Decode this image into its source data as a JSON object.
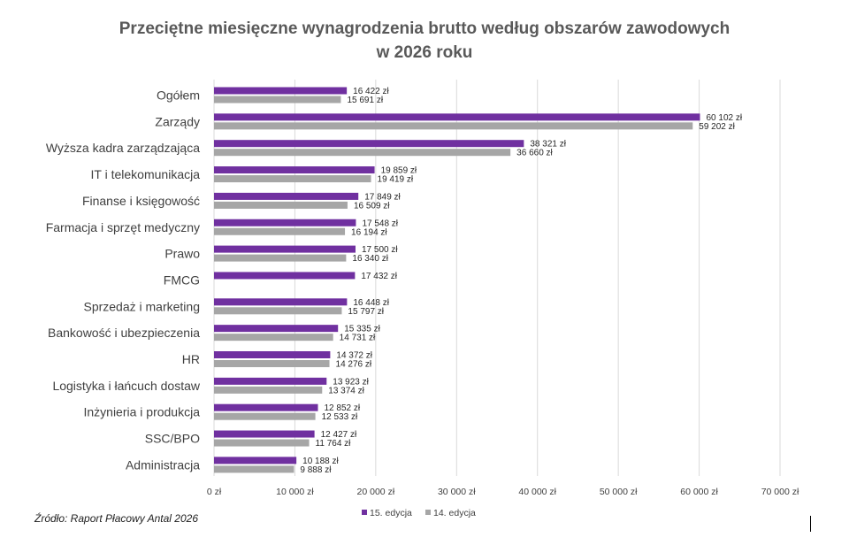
{
  "chart_data": {
    "type": "bar",
    "orientation": "horizontal",
    "title_lines": [
      "Przeciętne miesięczne wynagrodzenia brutto według obszarów zawodowych",
      "w 2026 roku"
    ],
    "categories": [
      "Ogółem",
      "Zarządy",
      "Wyższa kadra zarządzająca",
      "IT i telekomunikacja",
      "Finanse i księgowość",
      "Farmacja i sprzęt medyczny",
      "Prawo",
      "FMCG",
      "Sprzedaż i marketing",
      "Bankowość i ubezpieczenia",
      "HR",
      "Logistyka i łańcuch dostaw",
      "Inżynieria i produkcja",
      "SSC/BPO",
      "Administracja"
    ],
    "series": [
      {
        "name": "15. edycja",
        "color": "#7030a0",
        "values": [
          16422,
          60102,
          38321,
          19859,
          17849,
          17548,
          17500,
          17432,
          16448,
          15335,
          14372,
          13923,
          12852,
          12427,
          10188
        ],
        "labels": [
          "16 422 zł",
          "60 102 zł",
          "38 321 zł",
          "19 859 zł",
          "17 849 zł",
          "17 548 zł",
          "17 500 zł",
          "17 432 zł",
          "16 448 zł",
          "15 335 zł",
          "14 372 zł",
          "13 923 zł",
          "12 852 zł",
          "12 427 zł",
          "10 188 zł"
        ]
      },
      {
        "name": "14. edycja",
        "color": "#a6a6a6",
        "values": [
          15691,
          59202,
          36660,
          19419,
          16509,
          16194,
          16340,
          null,
          15797,
          14731,
          14276,
          13374,
          12533,
          11764,
          9888
        ],
        "labels": [
          "15 691 zł",
          "59 202 zł",
          "36 660 zł",
          "19 419 zł",
          "16 509 zł",
          "16 194 zł",
          "16 340 zł",
          null,
          "15 797 zł",
          "14 731 zł",
          "14 276 zł",
          "13 374 zł",
          "12 533 zł",
          "11 764 zł",
          "9 888 zł"
        ]
      }
    ],
    "xlim": [
      0,
      70000
    ],
    "xticks": [
      0,
      10000,
      20000,
      30000,
      40000,
      50000,
      60000,
      70000
    ],
    "xtick_labels": [
      "0 zł",
      "10 000 zł",
      "20 000 zł",
      "30 000 zł",
      "40 000 zł",
      "50 000 zł",
      "60 000 zł",
      "70 000 zł"
    ],
    "grid": "vertical",
    "legend_position": "bottom"
  },
  "source_note": "Źródło: Raport Płacowy Antal 2026"
}
